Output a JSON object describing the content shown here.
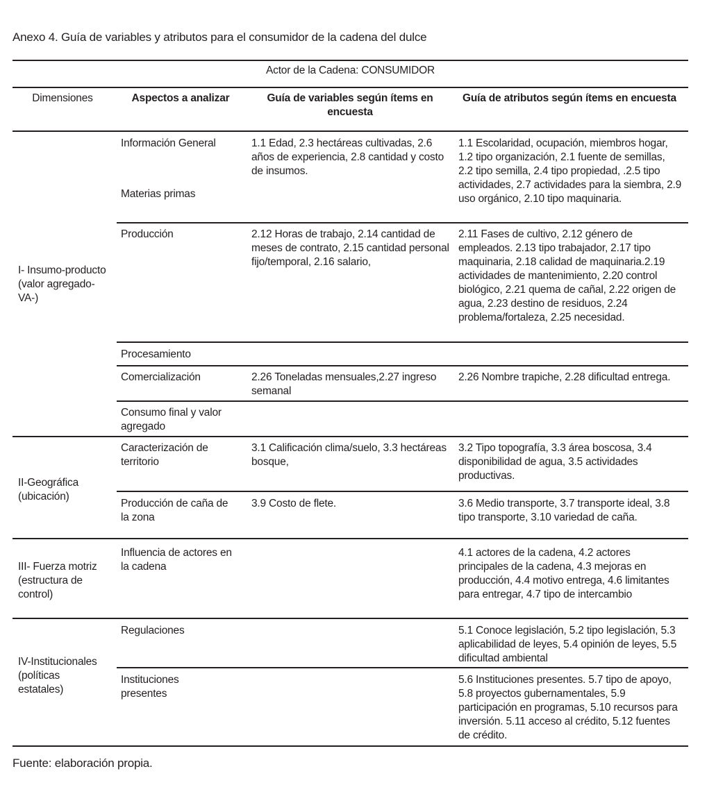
{
  "title": "Anexo 4. Guía de variables y atributos para el consumidor de la cadena del dulce",
  "actor": "Actor de la Cadena: CONSUMIDOR",
  "headers": {
    "dimensiones": "Dimensiones",
    "aspectos": "Aspectos a analizar",
    "variables": "Guía de variables según ítems en encuesta",
    "atributos": "Guía de atributos según ítems en encuesta"
  },
  "dimensions": [
    "I- Insumo-producto (valor agregado-VA-)",
    "II-Geográfica (ubicación)",
    "III- Fuerza motriz (estructura de control)",
    "IV-Institucionales (políticas estatales)"
  ],
  "rows": [
    {
      "aspecto": "Información General",
      "aspecto2": "Materias primas",
      "variables": "1.1 Edad, 2.3 hectáreas cultivadas, 2.6 años de experiencia, 2.8 cantidad y costo de insumos.",
      "atributos": "1.1 Escolaridad, ocupación, miembros hogar, 1.2 tipo organización, 2.1 fuente de semillas, 2.2 tipo semilla, 2.4 tipo propiedad, .2.5 tipo actividades, 2.7 actividades para la siembra, 2.9 uso orgánico, 2.10 tipo maquinaria."
    },
    {
      "aspecto": "Producción",
      "variables": "2.12 Horas de trabajo, 2.14 cantidad de meses de contrato, 2.15 cantidad personal fijo/temporal, 2.16 salario,",
      "atributos": "2.11 Fases de cultivo, 2.12 género de empleados. 2.13 tipo trabajador, 2.17 tipo maquinaria, 2.18 calidad de maquinaria.2.19 actividades de mantenimiento, 2.20 control biológico, 2.21 quema de cañal, 2.22 origen de agua, 2.23 destino de residuos, 2.24 problema/fortaleza, 2.25 necesidad."
    },
    {
      "aspecto": "Procesamiento",
      "variables": "",
      "atributos": ""
    },
    {
      "aspecto": "Comercialización",
      "variables": "2.26 Toneladas mensuales,2.27 ingreso semanal",
      "atributos": "2.26 Nombre trapiche, 2.28 dificultad entrega."
    },
    {
      "aspecto": "Consumo final y valor agregado",
      "variables": "",
      "atributos": ""
    },
    {
      "aspecto": "Caracterización de territorio",
      "variables": "3.1 Calificación clima/suelo, 3.3 hectáreas bosque,",
      "atributos": "3.2 Tipo topografía, 3.3 área boscosa, 3.4 disponibilidad de agua, 3.5 actividades productivas."
    },
    {
      "aspecto": "Producción de caña de la zona",
      "variables": "3.9 Costo de flete.",
      "atributos": "3.6 Medio transporte, 3.7 transporte ideal, 3.8 tipo transporte, 3.10 variedad de caña."
    },
    {
      "aspecto": "Influencia de actores en la cadena",
      "variables": "",
      "atributos": "4.1 actores de la cadena, 4.2 actores principales de la cadena, 4.3 mejoras en producción, 4.4 motivo entrega, 4.6 limitantes para entregar, 4.7 tipo de intercambio"
    },
    {
      "aspecto": "Regulaciones",
      "variables": "",
      "atributos": "5.1 Conoce legislación, 5.2 tipo legislación, 5.3 aplicabilidad de leyes, 5.4 opinión de leyes, 5.5 dificultad ambiental"
    },
    {
      "aspecto": "Instituciones presentes",
      "variables": "",
      "atributos": "5.6 Instituciones presentes. 5.7 tipo de apoyo, 5.8 proyectos gubernamentales, 5.9 participación en programas, 5.10 recursos para inversión. 5.11 acceso al crédito, 5.12 fuentes de crédito."
    }
  ],
  "source": "Fuente: elaboración propia."
}
